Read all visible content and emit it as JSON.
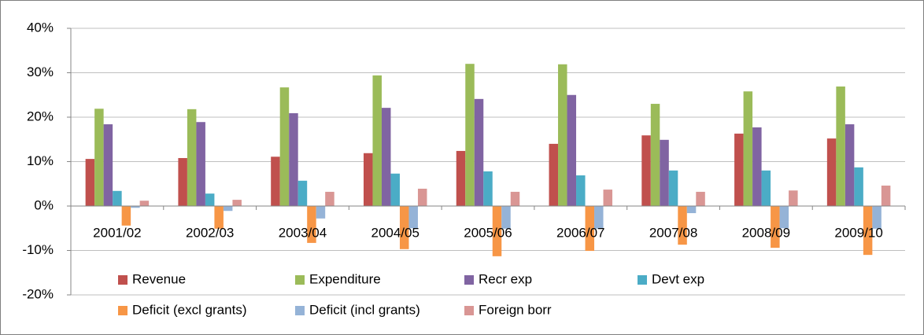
{
  "chart_data": {
    "type": "bar",
    "categories": [
      "2001/02",
      "2002/03",
      "2003/04",
      "2004/05",
      "2005/06",
      "2006/07",
      "2007/08",
      "2008/09",
      "2009/10"
    ],
    "series": [
      {
        "name": "Revenue",
        "color": "#c0504d",
        "values": [
          10.6,
          10.8,
          11.1,
          11.9,
          12.4,
          14.0,
          15.9,
          16.3,
          15.2
        ]
      },
      {
        "name": "Expenditure",
        "color": "#9bbb59",
        "values": [
          21.9,
          21.8,
          26.7,
          29.4,
          32.0,
          31.9,
          23.0,
          25.8,
          26.9
        ]
      },
      {
        "name": "Recr exp",
        "color": "#8064a2",
        "values": [
          18.4,
          18.9,
          20.9,
          22.1,
          24.1,
          25.0,
          14.9,
          17.7,
          18.4
        ]
      },
      {
        "name": "Devt exp",
        "color": "#4bacc6",
        "values": [
          3.4,
          2.8,
          5.7,
          7.3,
          7.8,
          6.9,
          8.0,
          8.0,
          8.7
        ]
      },
      {
        "name": "Deficit (excl grants)",
        "color": "#f79646",
        "values": [
          -4.4,
          -5.1,
          -8.3,
          -9.7,
          -11.3,
          -10.1,
          -8.7,
          -9.4,
          -11.0
        ]
      },
      {
        "name": "Deficit (incl grants)",
        "color": "#95b3d7",
        "values": [
          -0.4,
          -1.1,
          -2.8,
          -5.0,
          -5.1,
          -5.1,
          -1.6,
          -5.0,
          -5.1
        ]
      },
      {
        "name": "Foreign borr",
        "color": "#d99694",
        "values": [
          1.2,
          1.4,
          3.2,
          3.9,
          3.2,
          3.7,
          3.2,
          3.5,
          4.6
        ]
      }
    ],
    "ylim": [
      -20,
      40
    ],
    "yticks": [
      {
        "value": -20,
        "label": "-20%"
      },
      {
        "value": -10,
        "label": "-10%"
      },
      {
        "value": 0,
        "label": "0%"
      },
      {
        "value": 10,
        "label": "10%"
      },
      {
        "value": 20,
        "label": "20%"
      },
      {
        "value": 30,
        "label": "30%"
      },
      {
        "value": 40,
        "label": "40%"
      }
    ],
    "grid": true,
    "legend": "bottom"
  }
}
